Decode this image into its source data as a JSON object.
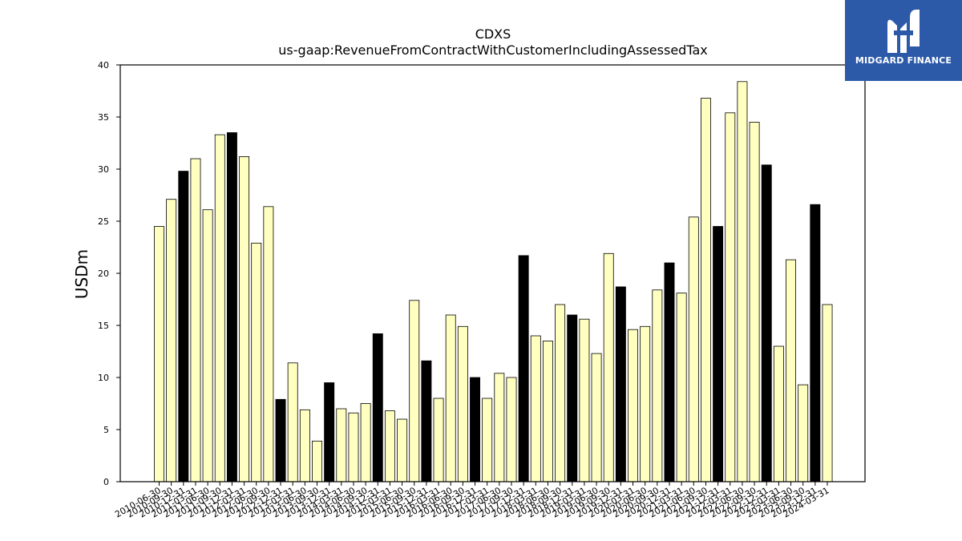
{
  "chart_data": {
    "type": "bar",
    "title": "CDXS",
    "subtitle": "us-gaap:RevenueFromContractWithCustomerIncludingAssessedTax",
    "ylabel": "USDm",
    "xlabel": "",
    "ylim": [
      0,
      40
    ],
    "yticks": [
      0,
      5,
      10,
      15,
      20,
      25,
      30,
      35,
      40
    ],
    "colors": {
      "quarter": "#ffffc0",
      "annual": "#000000",
      "edge": "#000000"
    },
    "categories": [
      "2010-06-30",
      "2010-09-30",
      "2010-12-31",
      "2011-03-31",
      "2011-06-30",
      "2011-09-30",
      "2011-12-31",
      "2012-03-31",
      "2012-06-30",
      "2012-09-30",
      "2012-12-31",
      "2013-03-31",
      "2013-06-30",
      "2013-09-30",
      "2013-12-31",
      "2014-03-31",
      "2014-06-30",
      "2014-09-30",
      "2014-12-31",
      "2015-03-31",
      "2015-06-30",
      "2015-09-30",
      "2015-12-31",
      "2016-03-31",
      "2016-06-30",
      "2016-09-30",
      "2016-12-31",
      "2017-03-31",
      "2017-06-30",
      "2017-09-30",
      "2017-12-31",
      "2018-03-31",
      "2018-06-30",
      "2018-09-30",
      "2018-12-31",
      "2019-03-31",
      "2019-06-30",
      "2019-09-30",
      "2019-12-31",
      "2020-03-31",
      "2020-06-30",
      "2020-09-30",
      "2020-12-31",
      "2021-03-31",
      "2021-06-30",
      "2021-09-30",
      "2021-12-31",
      "2022-03-31",
      "2022-06-30",
      "2022-09-30",
      "2022-12-31",
      "2023-03-31",
      "2023-06-30",
      "2023-09-30",
      "2023-12-31",
      "2024-03-31"
    ],
    "values": [
      24.5,
      27.1,
      29.8,
      31.0,
      26.1,
      33.3,
      33.5,
      31.2,
      22.9,
      26.4,
      7.9,
      11.4,
      6.9,
      3.9,
      9.5,
      7.0,
      6.6,
      7.5,
      14.2,
      6.8,
      6.0,
      17.4,
      11.6,
      8.0,
      16.0,
      14.9,
      10.0,
      8.0,
      10.4,
      10.0,
      21.7,
      14.0,
      13.5,
      17.0,
      16.0,
      15.6,
      12.3,
      21.9,
      18.7,
      14.6,
      14.9,
      18.4,
      21.0,
      18.1,
      25.4,
      36.8,
      24.5,
      35.4,
      38.4,
      34.5,
      30.4,
      13.0,
      21.3,
      9.3,
      26.6,
      17.0
    ],
    "annual": [
      false,
      false,
      true,
      false,
      false,
      false,
      true,
      false,
      false,
      false,
      true,
      false,
      false,
      false,
      true,
      false,
      false,
      false,
      true,
      false,
      false,
      false,
      true,
      false,
      false,
      false,
      true,
      false,
      false,
      false,
      true,
      false,
      false,
      false,
      true,
      false,
      false,
      false,
      true,
      false,
      false,
      false,
      true,
      false,
      false,
      false,
      true,
      false,
      false,
      false,
      true,
      false,
      false,
      false,
      true,
      false
    ],
    "legend": "none",
    "grid": false
  },
  "logo": {
    "text": "MIDGARD FINANCE"
  }
}
